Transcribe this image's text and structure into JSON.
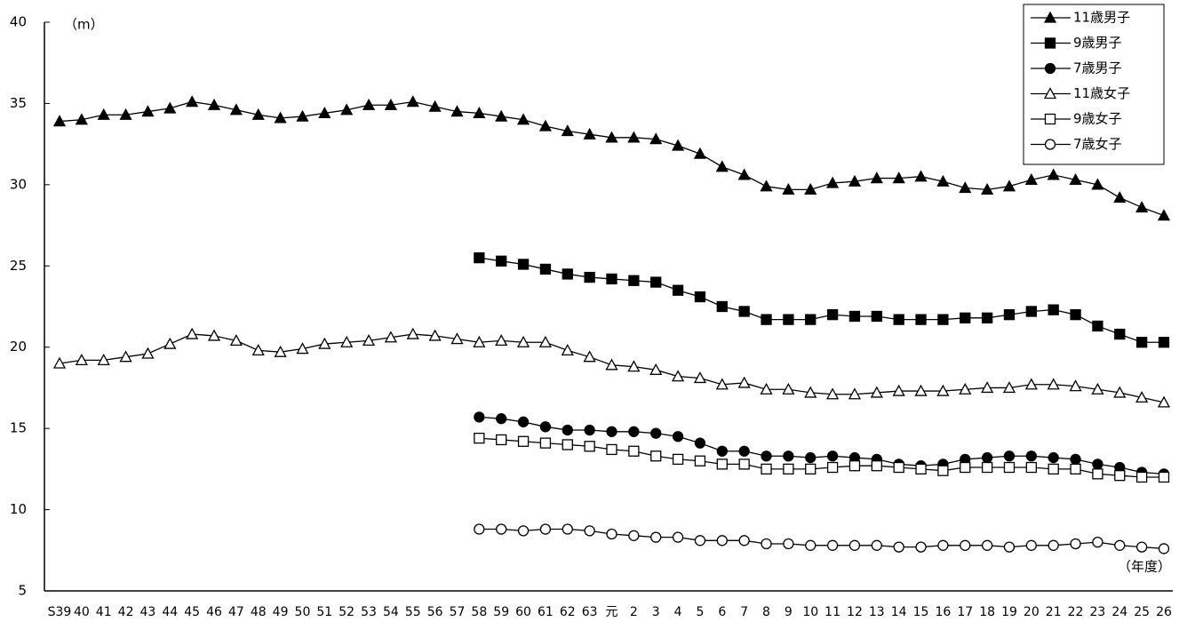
{
  "chart_data": {
    "type": "line",
    "y_label": "（m）",
    "x_label": "（年度）",
    "categories": [
      "S39",
      "40",
      "41",
      "42",
      "43",
      "44",
      "45",
      "46",
      "47",
      "48",
      "49",
      "50",
      "51",
      "52",
      "53",
      "54",
      "55",
      "56",
      "57",
      "58",
      "59",
      "60",
      "61",
      "62",
      "63",
      "元",
      "2",
      "3",
      "4",
      "5",
      "6",
      "7",
      "8",
      "9",
      "10",
      "11",
      "12",
      "13",
      "14",
      "15",
      "16",
      "17",
      "18",
      "19",
      "20",
      "21",
      "22",
      "23",
      "24",
      "25",
      "26"
    ],
    "ylim": [
      5,
      40
    ],
    "yticks": [
      5,
      10,
      15,
      20,
      25,
      30,
      35,
      40
    ],
    "legend": "top-right",
    "series": [
      {
        "name": "11歳男子",
        "color": "#000000",
        "marker": "triangle",
        "marker_fill": "#000000",
        "values": [
          33.9,
          34.0,
          34.3,
          34.3,
          34.5,
          34.7,
          35.1,
          34.9,
          34.6,
          34.3,
          34.1,
          34.2,
          34.4,
          34.6,
          34.9,
          34.9,
          35.1,
          34.8,
          34.5,
          34.4,
          34.2,
          34.0,
          33.6,
          33.3,
          33.1,
          32.9,
          32.9,
          32.8,
          32.4,
          31.9,
          31.1,
          30.6,
          29.9,
          29.7,
          29.7,
          30.1,
          30.2,
          30.4,
          30.4,
          30.5,
          30.2,
          29.8,
          29.7,
          29.9,
          30.3,
          30.6,
          30.3,
          30.0,
          29.2,
          28.6,
          28.1
        ]
      },
      {
        "name": "9歳男子",
        "color": "#000000",
        "marker": "square",
        "marker_fill": "#000000",
        "values": [
          null,
          null,
          null,
          null,
          null,
          null,
          null,
          null,
          null,
          null,
          null,
          null,
          null,
          null,
          null,
          null,
          null,
          null,
          null,
          25.5,
          25.3,
          25.1,
          24.8,
          24.5,
          24.3,
          24.2,
          24.1,
          24.0,
          23.5,
          23.1,
          22.5,
          22.2,
          21.7,
          21.7,
          21.7,
          22.0,
          21.9,
          21.9,
          21.7,
          21.7,
          21.7,
          21.8,
          21.8,
          22.0,
          22.2,
          22.3,
          22.0,
          21.3,
          20.8,
          20.3,
          20.3
        ]
      },
      {
        "name": "7歳男子",
        "color": "#000000",
        "marker": "circle",
        "marker_fill": "#000000",
        "values": [
          null,
          null,
          null,
          null,
          null,
          null,
          null,
          null,
          null,
          null,
          null,
          null,
          null,
          null,
          null,
          null,
          null,
          null,
          null,
          15.7,
          15.6,
          15.4,
          15.1,
          14.9,
          14.9,
          14.8,
          14.8,
          14.7,
          14.5,
          14.1,
          13.6,
          13.6,
          13.3,
          13.3,
          13.2,
          13.3,
          13.2,
          13.1,
          12.8,
          12.7,
          12.8,
          13.1,
          13.2,
          13.3,
          13.3,
          13.2,
          13.1,
          12.8,
          12.6,
          12.3,
          12.2
        ]
      },
      {
        "name": "11歳女子",
        "color": "#000000",
        "marker": "triangle",
        "marker_fill": "#ffffff",
        "values": [
          19.0,
          19.2,
          19.2,
          19.4,
          19.6,
          20.2,
          20.8,
          20.7,
          20.4,
          19.8,
          19.7,
          19.9,
          20.2,
          20.3,
          20.4,
          20.6,
          20.8,
          20.7,
          20.5,
          20.3,
          20.4,
          20.3,
          20.3,
          19.8,
          19.4,
          18.9,
          18.8,
          18.6,
          18.2,
          18.1,
          17.7,
          17.8,
          17.4,
          17.4,
          17.2,
          17.1,
          17.1,
          17.2,
          17.3,
          17.3,
          17.3,
          17.4,
          17.5,
          17.5,
          17.7,
          17.7,
          17.6,
          17.4,
          17.2,
          16.9,
          16.6
        ]
      },
      {
        "name": "9歳女子",
        "color": "#000000",
        "marker": "square",
        "marker_fill": "#ffffff",
        "values": [
          null,
          null,
          null,
          null,
          null,
          null,
          null,
          null,
          null,
          null,
          null,
          null,
          null,
          null,
          null,
          null,
          null,
          null,
          null,
          14.4,
          14.3,
          14.2,
          14.1,
          14.0,
          13.9,
          13.7,
          13.6,
          13.3,
          13.1,
          13.0,
          12.8,
          12.8,
          12.5,
          12.5,
          12.5,
          12.6,
          12.7,
          12.7,
          12.6,
          12.5,
          12.4,
          12.6,
          12.6,
          12.6,
          12.6,
          12.5,
          12.5,
          12.2,
          12.1,
          12.0,
          12.0
        ]
      },
      {
        "name": "7歳女子",
        "color": "#000000",
        "marker": "circle",
        "marker_fill": "#ffffff",
        "values": [
          null,
          null,
          null,
          null,
          null,
          null,
          null,
          null,
          null,
          null,
          null,
          null,
          null,
          null,
          null,
          null,
          null,
          null,
          null,
          8.8,
          8.8,
          8.7,
          8.8,
          8.8,
          8.7,
          8.5,
          8.4,
          8.3,
          8.3,
          8.1,
          8.1,
          8.1,
          7.9,
          7.9,
          7.8,
          7.8,
          7.8,
          7.8,
          7.7,
          7.7,
          7.8,
          7.8,
          7.8,
          7.7,
          7.8,
          7.8,
          7.9,
          8.0,
          7.8,
          7.7,
          7.6
        ]
      }
    ]
  }
}
